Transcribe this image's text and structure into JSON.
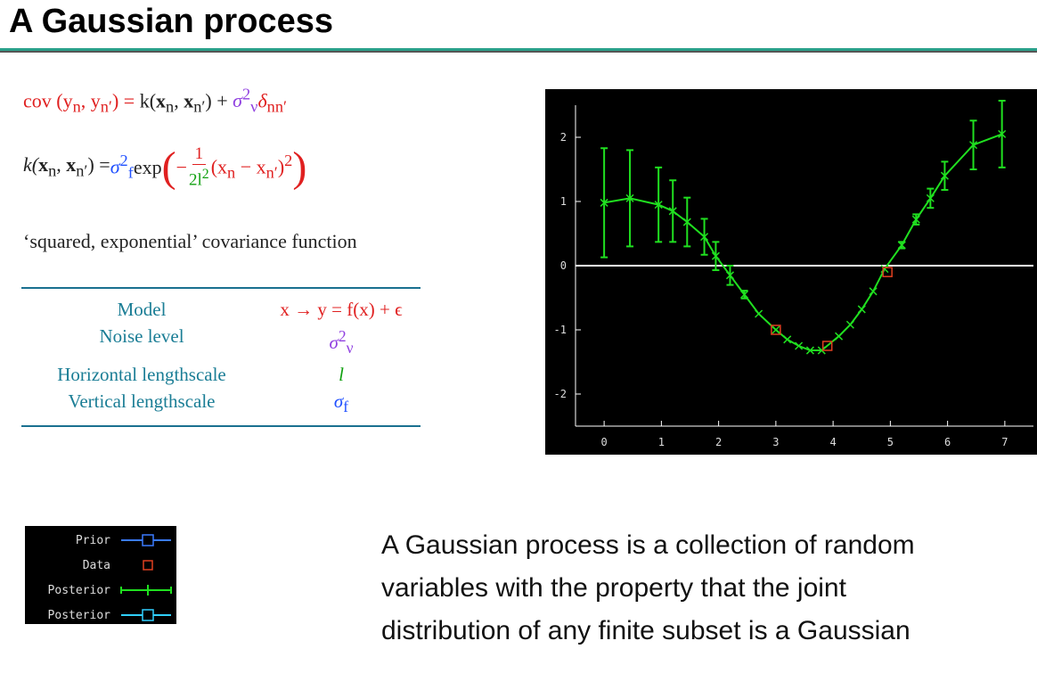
{
  "title": "A Gaussian process",
  "eq1": {
    "lhs": "cov (y",
    "lhs_sub1": "n",
    "lhs_mid": ", y",
    "lhs_sub2": "n′",
    "lhs_end": ") = ",
    "k": "k(",
    "x1": "x",
    "x1_sub": "n",
    "comma": ", ",
    "x2": "x",
    "x2_sub": "n′",
    "k_end": ") + ",
    "sigma": "σ",
    "sigma_sub": "ν",
    "sigma_sup": "2",
    "delta": "δ",
    "delta_sub": "nn′"
  },
  "eq2": {
    "k": "k(",
    "x1": "x",
    "x1_sub": "n",
    "comma": ", ",
    "x2": "x",
    "x2_sub": "n′",
    "k_end": ") = ",
    "sigma": "σ",
    "sigma_sub": "f",
    "sigma_sup": "2",
    "exp": " exp ",
    "lparen": "(",
    "minus": "−",
    "num": "1",
    "den": "2l",
    "den_sup": "2",
    "inner": " (x",
    "inner_sub1": "n",
    "inner_mid": " − x",
    "inner_sub2": "n′",
    "inner_end": ")",
    "inner_sup": "2",
    "rparen": ")"
  },
  "description": "‘squared, exponential’ covariance function",
  "table": {
    "rows": [
      {
        "label": "Model",
        "value": "x → y = f(x) + ϵ",
        "color": "#e02020"
      },
      {
        "label": "Noise level",
        "value": "σ",
        "value_sub": "ν",
        "value_sup": "2",
        "color": "#9040e0"
      },
      {
        "label": "Horizontal lengthscale",
        "value": "l",
        "color": "#10a010"
      },
      {
        "label": "Vertical lengthscale",
        "value": "σ",
        "value_sub": "f",
        "color": "#2050ff"
      }
    ]
  },
  "legend": {
    "items": [
      {
        "label": "Prior",
        "color": "#3a7bff",
        "marker": "square-line"
      },
      {
        "label": "Data",
        "color": "#e04020",
        "marker": "square"
      },
      {
        "label": "Posterior",
        "color": "#20e020",
        "marker": "errorbar-line"
      },
      {
        "label": "Posterior",
        "color": "#30d0ff",
        "marker": "square-line"
      }
    ]
  },
  "paragraph": " A Gaussian process is a collection of random\nvariables with the property that the joint\ndistribution of any finite subset is a Gaussian",
  "chart_data": {
    "type": "line",
    "background": "#000000",
    "xlim": [
      -0.5,
      7.5
    ],
    "ylim": [
      -2.5,
      2.5
    ],
    "xticks": [
      0,
      1,
      2,
      3,
      4,
      5,
      6,
      7
    ],
    "yticks": [
      -2,
      -1,
      0,
      1,
      2
    ],
    "zero_line": true,
    "series": [
      {
        "kind": "posterior-mean-errorbars",
        "color": "#20e020",
        "x": [
          0,
          0.45,
          0.95,
          1.2,
          1.45,
          1.75,
          1.95,
          2.2,
          2.45,
          2.7,
          3.0,
          3.2,
          3.4,
          3.6,
          3.8,
          4.1,
          4.3,
          4.5,
          4.7,
          4.9,
          5.2,
          5.45,
          5.7,
          5.95,
          6.45,
          6.95
        ],
        "y": [
          0.98,
          1.05,
          0.95,
          0.85,
          0.68,
          0.45,
          0.15,
          -0.15,
          -0.45,
          -0.75,
          -1.0,
          -1.15,
          -1.25,
          -1.32,
          -1.32,
          -1.1,
          -0.92,
          -0.68,
          -0.4,
          -0.05,
          0.32,
          0.72,
          1.05,
          1.4,
          1.88,
          2.05
        ],
        "err": [
          0.85,
          0.75,
          0.58,
          0.48,
          0.38,
          0.28,
          0.22,
          0.15,
          0.06,
          0.03,
          0.02,
          0.03,
          0.02,
          0.03,
          0.02,
          0.03,
          0.03,
          0.04,
          0.04,
          0.02,
          0.05,
          0.08,
          0.15,
          0.22,
          0.38,
          0.52
        ]
      },
      {
        "kind": "data",
        "color": "#e04020",
        "x": [
          3.0,
          3.9,
          4.95
        ],
        "y": [
          -1.0,
          -1.25,
          -0.1
        ]
      }
    ]
  }
}
